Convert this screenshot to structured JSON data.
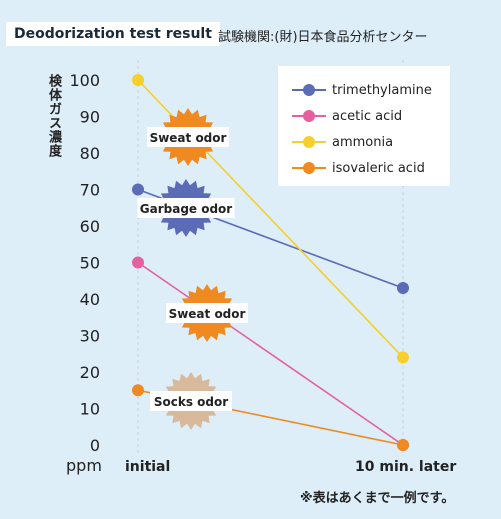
{
  "title": "Deodorization test result",
  "subtitle": "試験機関:(財)日本食品分析センター",
  "ylabel": "検体ガス濃度",
  "unit": "ppm",
  "note": "※表はあくまで一例です。",
  "chart_data": {
    "type": "line",
    "categories": [
      "initial",
      "10 min. later"
    ],
    "ylim": [
      0,
      100
    ],
    "yticks": [
      0,
      10,
      20,
      30,
      40,
      50,
      60,
      70,
      80,
      90,
      100
    ],
    "grid": true,
    "legend": "top-right",
    "series": [
      {
        "name": "trimethylamine",
        "values": [
          70,
          43
        ],
        "color": "#5b6bb5",
        "badge": "Garbage odor",
        "badge_color": "#5b6bb5"
      },
      {
        "name": "acetic acid",
        "values": [
          50,
          0
        ],
        "color": "#e5609e",
        "badge": "Sweat odor",
        "badge_color": "#f08a20"
      },
      {
        "name": "ammonia",
        "values": [
          100,
          24
        ],
        "color": "#f5cf2c",
        "badge": "Sweat odor",
        "badge_color": "#f08a20"
      },
      {
        "name": "isovaleric acid",
        "values": [
          15,
          0
        ],
        "color": "#f08a20",
        "badge": "Socks odor",
        "badge_color": "#d9b99c"
      }
    ]
  }
}
